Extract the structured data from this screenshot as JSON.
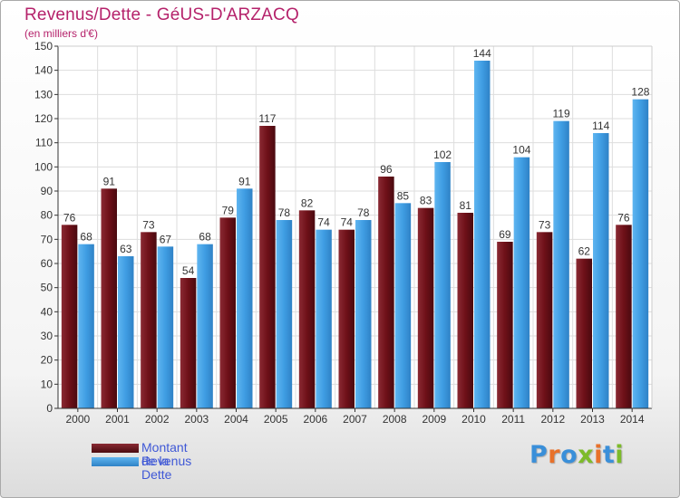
{
  "colors": {
    "title": "#b5226b",
    "legend_text": "#3f58d6",
    "dette": "#6e1018",
    "revenus": "#3f9de3",
    "axis": "#333333",
    "grid": "#dddddd"
  },
  "legend": {
    "items": [
      {
        "label": "Montant de la Dette",
        "color": "#6e1018"
      },
      {
        "label": "Revenus",
        "color": "#3f9de3"
      }
    ]
  },
  "logo": {
    "letters": [
      "P",
      "r",
      "o",
      "x",
      "i",
      "t",
      "i"
    ],
    "letter_colors": [
      "#3a8fd9",
      "#e8712a",
      "#3a8fd9",
      "#7dbb2a",
      "#e8712a",
      "#3a8fd9",
      "#7dbb2a"
    ]
  },
  "chart_data": {
    "type": "bar",
    "title": "Revenus/Dette - GéUS-D'ARZACQ",
    "subtitle": "(en milliers d'€)",
    "xlabel": "",
    "ylabel": "",
    "ylim": [
      0,
      150
    ],
    "ytick_step": 10,
    "grid": true,
    "legend_position": "bottom-left",
    "categories": [
      "2000",
      "2001",
      "2002",
      "2003",
      "2004",
      "2005",
      "2006",
      "2007",
      "2008",
      "2009",
      "2010",
      "2011",
      "2012",
      "2013",
      "2014"
    ],
    "series": [
      {
        "name": "Montant de la Dette",
        "values": [
          76,
          91,
          73,
          54,
          79,
          117,
          82,
          74,
          96,
          83,
          81,
          69,
          73,
          62,
          76
        ]
      },
      {
        "name": "Revenus",
        "values": [
          68,
          63,
          67,
          68,
          91,
          78,
          74,
          78,
          85,
          102,
          144,
          104,
          119,
          114,
          128
        ]
      }
    ]
  }
}
